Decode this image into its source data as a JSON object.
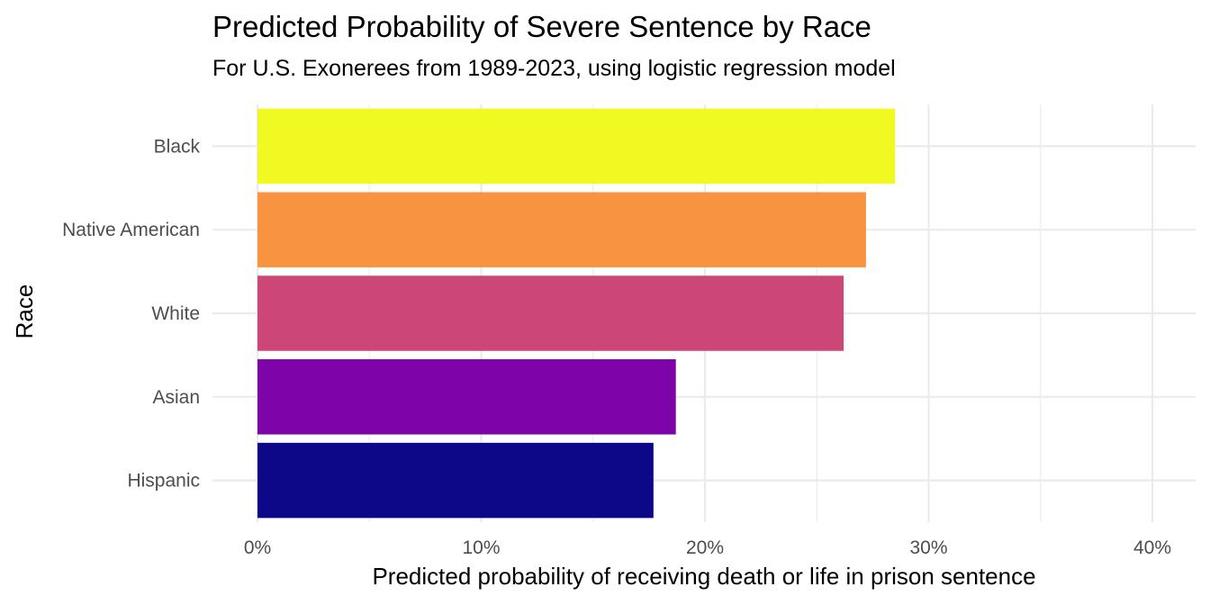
{
  "chart_data": {
    "type": "bar",
    "orientation": "horizontal",
    "title": "Predicted Probability of Severe Sentence by Race",
    "subtitle": "For U.S. Exonerees from 1989-2023, using logistic regression model",
    "xlabel": "Predicted probability of receiving death or life in prison sentence",
    "ylabel": "Race",
    "categories": [
      "Black",
      "Native American",
      "White",
      "Asian",
      "Hispanic"
    ],
    "values": [
      0.285,
      0.272,
      0.262,
      0.187,
      0.177
    ],
    "colors": [
      "#F0F921",
      "#F89441",
      "#CC4778",
      "#7E03A8",
      "#0D0887"
    ],
    "xlim": [
      0,
      0.42
    ],
    "xticks": [
      0,
      0.1,
      0.2,
      0.3,
      0.4
    ],
    "xtick_labels": [
      "0%",
      "10%",
      "20%",
      "30%",
      "40%"
    ],
    "grid": true,
    "legend": "none"
  }
}
